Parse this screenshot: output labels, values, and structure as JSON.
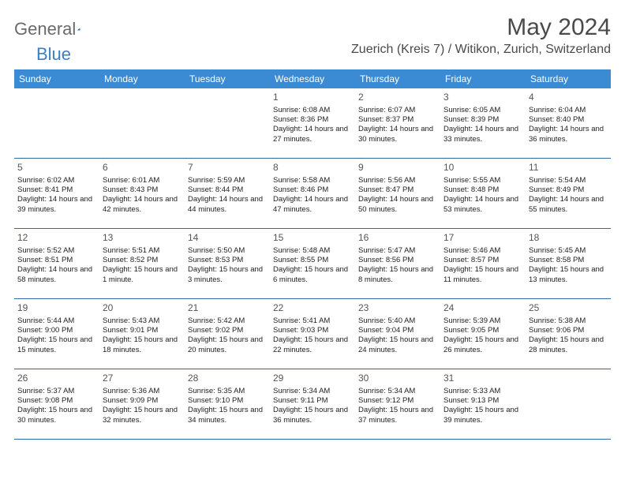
{
  "logo": {
    "text1": "General",
    "text2": "Blue"
  },
  "title": "May 2024",
  "location": "Zuerich (Kreis 7) / Witikon, Zurich, Switzerland",
  "colors": {
    "header_bg": "#3b8bd4",
    "header_text": "#ffffff",
    "row_border": "#2e6aa8",
    "title_color": "#4a4a4a",
    "logo_gray": "#6a6a6a",
    "logo_blue": "#3b7fc4",
    "body_text": "#222222"
  },
  "dow": [
    "Sunday",
    "Monday",
    "Tuesday",
    "Wednesday",
    "Thursday",
    "Friday",
    "Saturday"
  ],
  "weeks": [
    [
      null,
      null,
      null,
      {
        "n": "1",
        "sr": "6:08 AM",
        "ss": "8:36 PM",
        "dl": "14 hours and 27 minutes."
      },
      {
        "n": "2",
        "sr": "6:07 AM",
        "ss": "8:37 PM",
        "dl": "14 hours and 30 minutes."
      },
      {
        "n": "3",
        "sr": "6:05 AM",
        "ss": "8:39 PM",
        "dl": "14 hours and 33 minutes."
      },
      {
        "n": "4",
        "sr": "6:04 AM",
        "ss": "8:40 PM",
        "dl": "14 hours and 36 minutes."
      }
    ],
    [
      {
        "n": "5",
        "sr": "6:02 AM",
        "ss": "8:41 PM",
        "dl": "14 hours and 39 minutes."
      },
      {
        "n": "6",
        "sr": "6:01 AM",
        "ss": "8:43 PM",
        "dl": "14 hours and 42 minutes."
      },
      {
        "n": "7",
        "sr": "5:59 AM",
        "ss": "8:44 PM",
        "dl": "14 hours and 44 minutes."
      },
      {
        "n": "8",
        "sr": "5:58 AM",
        "ss": "8:46 PM",
        "dl": "14 hours and 47 minutes."
      },
      {
        "n": "9",
        "sr": "5:56 AM",
        "ss": "8:47 PM",
        "dl": "14 hours and 50 minutes."
      },
      {
        "n": "10",
        "sr": "5:55 AM",
        "ss": "8:48 PM",
        "dl": "14 hours and 53 minutes."
      },
      {
        "n": "11",
        "sr": "5:54 AM",
        "ss": "8:49 PM",
        "dl": "14 hours and 55 minutes."
      }
    ],
    [
      {
        "n": "12",
        "sr": "5:52 AM",
        "ss": "8:51 PM",
        "dl": "14 hours and 58 minutes."
      },
      {
        "n": "13",
        "sr": "5:51 AM",
        "ss": "8:52 PM",
        "dl": "15 hours and 1 minute."
      },
      {
        "n": "14",
        "sr": "5:50 AM",
        "ss": "8:53 PM",
        "dl": "15 hours and 3 minutes."
      },
      {
        "n": "15",
        "sr": "5:48 AM",
        "ss": "8:55 PM",
        "dl": "15 hours and 6 minutes."
      },
      {
        "n": "16",
        "sr": "5:47 AM",
        "ss": "8:56 PM",
        "dl": "15 hours and 8 minutes."
      },
      {
        "n": "17",
        "sr": "5:46 AM",
        "ss": "8:57 PM",
        "dl": "15 hours and 11 minutes."
      },
      {
        "n": "18",
        "sr": "5:45 AM",
        "ss": "8:58 PM",
        "dl": "15 hours and 13 minutes."
      }
    ],
    [
      {
        "n": "19",
        "sr": "5:44 AM",
        "ss": "9:00 PM",
        "dl": "15 hours and 15 minutes."
      },
      {
        "n": "20",
        "sr": "5:43 AM",
        "ss": "9:01 PM",
        "dl": "15 hours and 18 minutes."
      },
      {
        "n": "21",
        "sr": "5:42 AM",
        "ss": "9:02 PM",
        "dl": "15 hours and 20 minutes."
      },
      {
        "n": "22",
        "sr": "5:41 AM",
        "ss": "9:03 PM",
        "dl": "15 hours and 22 minutes."
      },
      {
        "n": "23",
        "sr": "5:40 AM",
        "ss": "9:04 PM",
        "dl": "15 hours and 24 minutes."
      },
      {
        "n": "24",
        "sr": "5:39 AM",
        "ss": "9:05 PM",
        "dl": "15 hours and 26 minutes."
      },
      {
        "n": "25",
        "sr": "5:38 AM",
        "ss": "9:06 PM",
        "dl": "15 hours and 28 minutes."
      }
    ],
    [
      {
        "n": "26",
        "sr": "5:37 AM",
        "ss": "9:08 PM",
        "dl": "15 hours and 30 minutes."
      },
      {
        "n": "27",
        "sr": "5:36 AM",
        "ss": "9:09 PM",
        "dl": "15 hours and 32 minutes."
      },
      {
        "n": "28",
        "sr": "5:35 AM",
        "ss": "9:10 PM",
        "dl": "15 hours and 34 minutes."
      },
      {
        "n": "29",
        "sr": "5:34 AM",
        "ss": "9:11 PM",
        "dl": "15 hours and 36 minutes."
      },
      {
        "n": "30",
        "sr": "5:34 AM",
        "ss": "9:12 PM",
        "dl": "15 hours and 37 minutes."
      },
      {
        "n": "31",
        "sr": "5:33 AM",
        "ss": "9:13 PM",
        "dl": "15 hours and 39 minutes."
      },
      null
    ]
  ],
  "labels": {
    "sunrise": "Sunrise:",
    "sunset": "Sunset:",
    "daylight": "Daylight:"
  }
}
